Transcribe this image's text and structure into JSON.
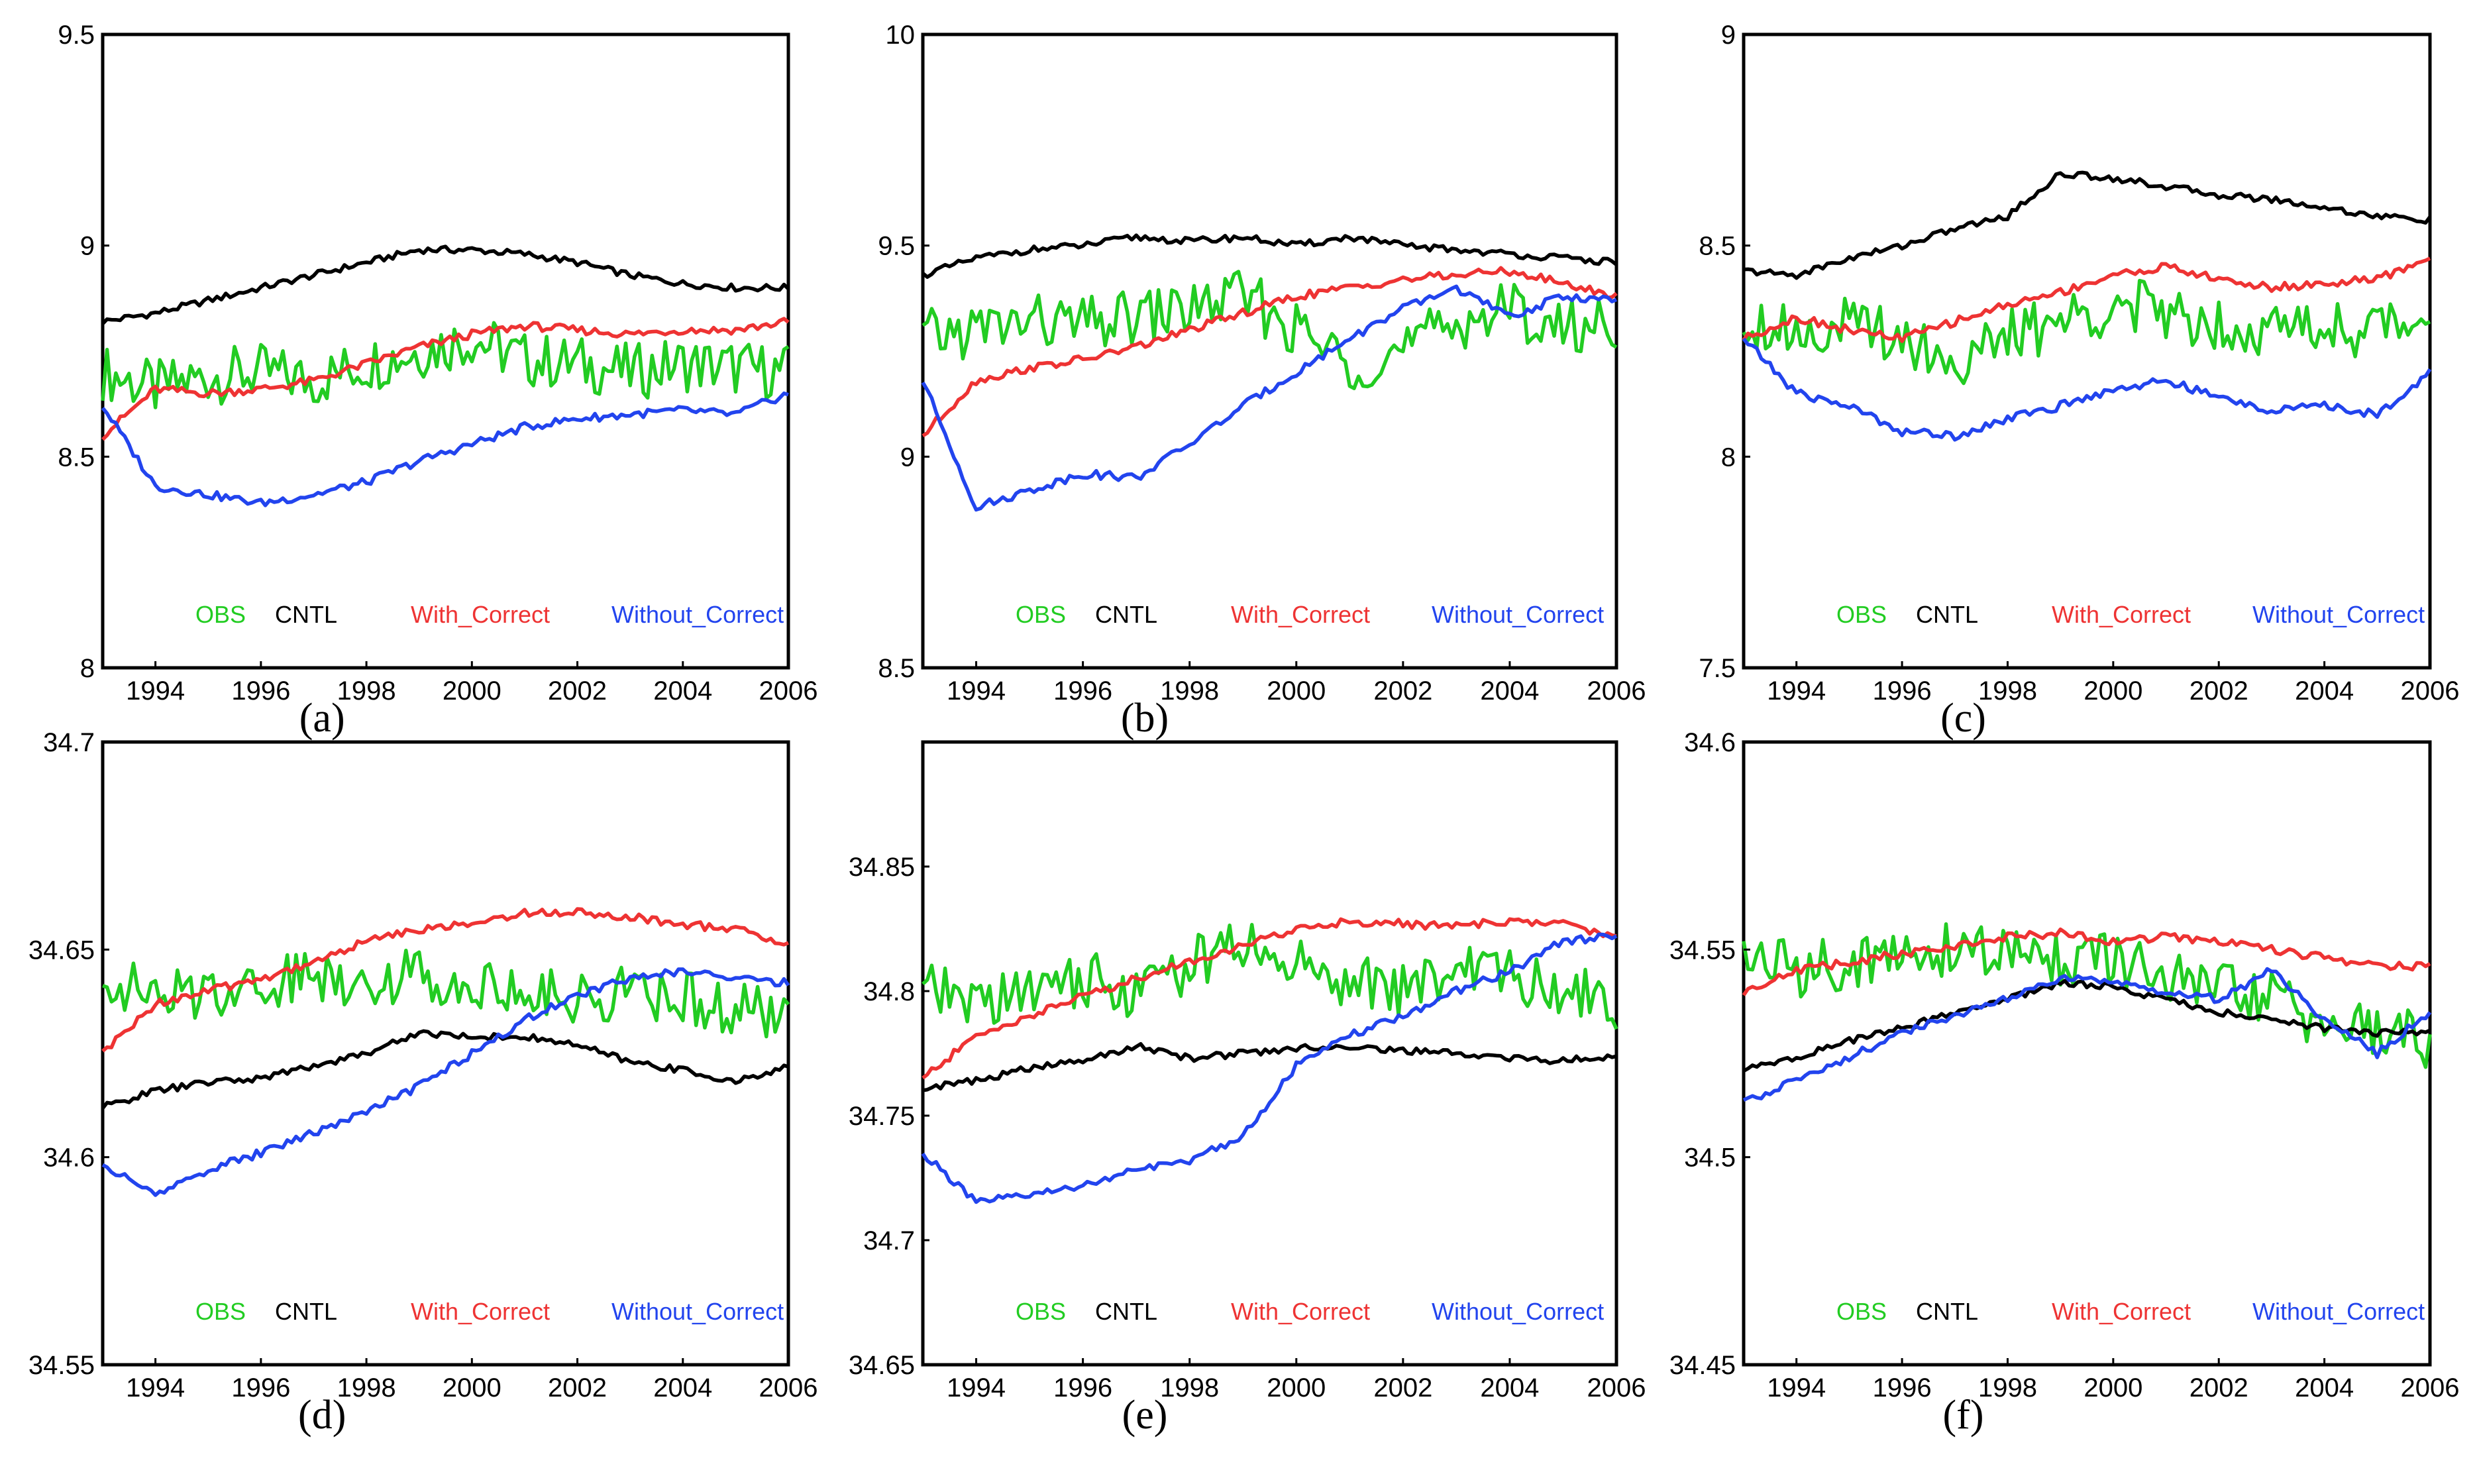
{
  "chart_data": [
    {
      "id": "a",
      "type": "line",
      "panel_label": "(a)",
      "xlim": [
        1993,
        2006
      ],
      "ylim": [
        8,
        9.5
      ],
      "xticks": [
        "1994",
        "1996",
        "1998",
        "2000",
        "2002",
        "2004",
        "2006"
      ],
      "yticks": [
        "8",
        "8.5",
        "9",
        "9.5"
      ],
      "series": [
        {
          "name": "OBS",
          "color": "#22cc22",
          "values": [
            8.7,
            8.66,
            8.69,
            8.7,
            8.68,
            8.72,
            8.75,
            8.78,
            8.73,
            8.72,
            8.7,
            8.72,
            8.71,
            8.7
          ]
        },
        {
          "name": "CNTL",
          "color": "#000000",
          "values": [
            8.82,
            8.84,
            8.87,
            8.9,
            8.93,
            8.96,
            8.99,
            8.99,
            8.98,
            8.96,
            8.93,
            8.91,
            8.9,
            8.9
          ]
        },
        {
          "name": "With_Correct",
          "color": "#ee3333",
          "values": [
            8.55,
            8.66,
            8.65,
            8.66,
            8.68,
            8.72,
            8.76,
            8.79,
            8.81,
            8.8,
            8.79,
            8.8,
            8.8,
            8.82
          ]
        },
        {
          "name": "Without_Correct",
          "color": "#2244ee",
          "values": [
            8.62,
            8.43,
            8.41,
            8.39,
            8.41,
            8.44,
            8.49,
            8.53,
            8.57,
            8.59,
            8.6,
            8.61,
            8.6,
            8.65
          ]
        }
      ]
    },
    {
      "id": "b",
      "type": "line",
      "panel_label": "(b)",
      "xlim": [
        1993,
        2006
      ],
      "ylim": [
        8.5,
        10
      ],
      "xticks": [
        "1994",
        "1996",
        "1998",
        "2000",
        "2002",
        "2004",
        "2006"
      ],
      "yticks": [
        "8.5",
        "9",
        "9.5",
        "10"
      ],
      "series": [
        {
          "name": "OBS",
          "color": "#22cc22",
          "values": [
            9.28,
            9.3,
            9.32,
            9.31,
            9.33,
            9.35,
            9.38,
            9.3,
            9.22,
            9.25,
            9.32,
            9.35,
            9.3,
            9.32
          ]
        },
        {
          "name": "CNTL",
          "color": "#000000",
          "values": [
            9.43,
            9.47,
            9.49,
            9.5,
            9.52,
            9.51,
            9.52,
            9.5,
            9.52,
            9.5,
            9.49,
            9.48,
            9.47,
            9.46
          ]
        },
        {
          "name": "With_Correct",
          "color": "#ee3333",
          "values": [
            9.05,
            9.18,
            9.21,
            9.23,
            9.26,
            9.3,
            9.34,
            9.38,
            9.4,
            9.42,
            9.43,
            9.44,
            9.41,
            9.38
          ]
        },
        {
          "name": "Without_Correct",
          "color": "#2244ee",
          "values": [
            9.18,
            8.88,
            8.92,
            8.96,
            8.95,
            9.03,
            9.12,
            9.2,
            9.28,
            9.35,
            9.4,
            9.33,
            9.38,
            9.37
          ]
        }
      ]
    },
    {
      "id": "c",
      "type": "line",
      "panel_label": "(c)",
      "xlim": [
        1993,
        2006
      ],
      "ylim": [
        7.5,
        9
      ],
      "xticks": [
        "1994",
        "1996",
        "1998",
        "2000",
        "2002",
        "2004",
        "2006"
      ],
      "yticks": [
        "7.5",
        "8",
        "8.5",
        "9"
      ],
      "series": [
        {
          "name": "OBS",
          "color": "#22cc22",
          "values": [
            8.33,
            8.3,
            8.31,
            8.29,
            8.22,
            8.28,
            8.32,
            8.36,
            8.34,
            8.32,
            8.3,
            8.31,
            8.3,
            8.34
          ]
        },
        {
          "name": "CNTL",
          "color": "#000000",
          "values": [
            8.44,
            8.43,
            8.47,
            8.5,
            8.54,
            8.57,
            8.67,
            8.66,
            8.64,
            8.62,
            8.61,
            8.59,
            8.57,
            8.56
          ]
        },
        {
          "name": "With_Correct",
          "color": "#ee3333",
          "values": [
            8.28,
            8.33,
            8.3,
            8.28,
            8.32,
            8.36,
            8.39,
            8.43,
            8.45,
            8.42,
            8.4,
            8.41,
            8.42,
            8.47
          ]
        },
        {
          "name": "Without_Correct",
          "color": "#2244ee",
          "values": [
            8.28,
            8.15,
            8.12,
            8.06,
            8.05,
            8.09,
            8.12,
            8.16,
            8.18,
            8.14,
            8.11,
            8.12,
            8.1,
            8.2
          ]
        }
      ]
    },
    {
      "id": "d",
      "type": "line",
      "panel_label": "(d)",
      "xlim": [
        1993,
        2006
      ],
      "ylim": [
        34.55,
        34.7
      ],
      "xticks": [
        "1994",
        "1996",
        "1998",
        "2000",
        "2002",
        "2004",
        "2006"
      ],
      "yticks": [
        "34.55",
        "34.6",
        "34.65",
        "34.7"
      ],
      "series": [
        {
          "name": "OBS",
          "color": "#22cc22",
          "values": [
            34.644,
            34.638,
            34.64,
            34.642,
            34.644,
            34.643,
            34.644,
            34.642,
            34.64,
            34.638,
            34.64,
            34.638,
            34.636,
            34.632
          ]
        },
        {
          "name": "CNTL",
          "color": "#000000",
          "values": [
            34.612,
            34.616,
            34.618,
            34.619,
            34.622,
            34.625,
            34.63,
            34.629,
            34.629,
            34.627,
            34.623,
            34.621,
            34.618,
            34.622
          ]
        },
        {
          "name": "With_Correct",
          "color": "#ee3333",
          "values": [
            34.625,
            34.637,
            34.64,
            34.643,
            34.647,
            34.652,
            34.655,
            34.656,
            34.659,
            34.659,
            34.658,
            34.656,
            34.655,
            34.651
          ]
        },
        {
          "name": "Without_Correct",
          "color": "#2244ee",
          "values": [
            34.598,
            34.591,
            34.597,
            34.601,
            34.606,
            34.611,
            34.617,
            34.625,
            34.633,
            34.639,
            34.643,
            34.645,
            34.643,
            34.642
          ]
        }
      ]
    },
    {
      "id": "e",
      "type": "line",
      "panel_label": "(e)",
      "xlim": [
        1993,
        2006
      ],
      "ylim": [
        34.65,
        34.9
      ],
      "xticks": [
        "1994",
        "1996",
        "1998",
        "2000",
        "2002",
        "2004",
        "2006"
      ],
      "yticks": [
        "34.65",
        "34.7",
        "34.75",
        "34.8",
        "34.85"
      ],
      "series": [
        {
          "name": "OBS",
          "color": "#22cc22",
          "values": [
            34.8,
            34.795,
            34.8,
            34.805,
            34.8,
            34.81,
            34.82,
            34.81,
            34.805,
            34.8,
            34.81,
            34.805,
            34.8,
            34.795
          ]
        },
        {
          "name": "CNTL",
          "color": "#000000",
          "values": [
            34.761,
            34.764,
            34.769,
            34.772,
            34.778,
            34.773,
            34.775,
            34.777,
            34.778,
            34.776,
            34.775,
            34.773,
            34.772,
            34.774
          ]
        },
        {
          "name": "With_Correct",
          "color": "#ee3333",
          "values": [
            34.765,
            34.782,
            34.79,
            34.798,
            34.805,
            34.812,
            34.818,
            34.825,
            34.828,
            34.827,
            34.826,
            34.828,
            34.827,
            34.822
          ]
        },
        {
          "name": "Without_Correct",
          "color": "#2244ee",
          "values": [
            34.735,
            34.715,
            34.718,
            34.722,
            34.728,
            34.732,
            34.742,
            34.77,
            34.782,
            34.79,
            34.8,
            34.808,
            34.82,
            34.822
          ]
        }
      ]
    },
    {
      "id": "f",
      "type": "line",
      "panel_label": "(f)",
      "xlim": [
        1993,
        2006
      ],
      "ylim": [
        34.45,
        34.6
      ],
      "xticks": [
        "1994",
        "1996",
        "1998",
        "2000",
        "2002",
        "2004",
        "2006"
      ],
      "yticks": [
        "34.45",
        "34.5",
        "34.55",
        "34.6"
      ],
      "series": [
        {
          "name": "OBS",
          "color": "#22cc22",
          "values": [
            34.549,
            34.545,
            34.547,
            34.548,
            34.55,
            34.549,
            34.548,
            34.547,
            34.543,
            34.54,
            34.538,
            34.532,
            34.53,
            34.528
          ]
        },
        {
          "name": "CNTL",
          "color": "#000000",
          "values": [
            34.521,
            34.524,
            34.528,
            34.531,
            34.535,
            34.538,
            34.542,
            34.541,
            34.538,
            34.535,
            34.533,
            34.531,
            34.53,
            34.53
          ]
        },
        {
          "name": "With_Correct",
          "color": "#ee3333",
          "values": [
            34.54,
            34.545,
            34.547,
            34.549,
            34.551,
            34.553,
            34.554,
            34.552,
            34.553,
            34.552,
            34.55,
            34.548,
            34.546,
            34.546
          ]
        },
        {
          "name": "Without_Correct",
          "color": "#2244ee",
          "values": [
            34.513,
            34.519,
            34.524,
            34.53,
            34.534,
            34.538,
            34.543,
            34.542,
            34.54,
            34.538,
            34.545,
            34.533,
            34.525,
            34.535
          ]
        }
      ]
    }
  ]
}
